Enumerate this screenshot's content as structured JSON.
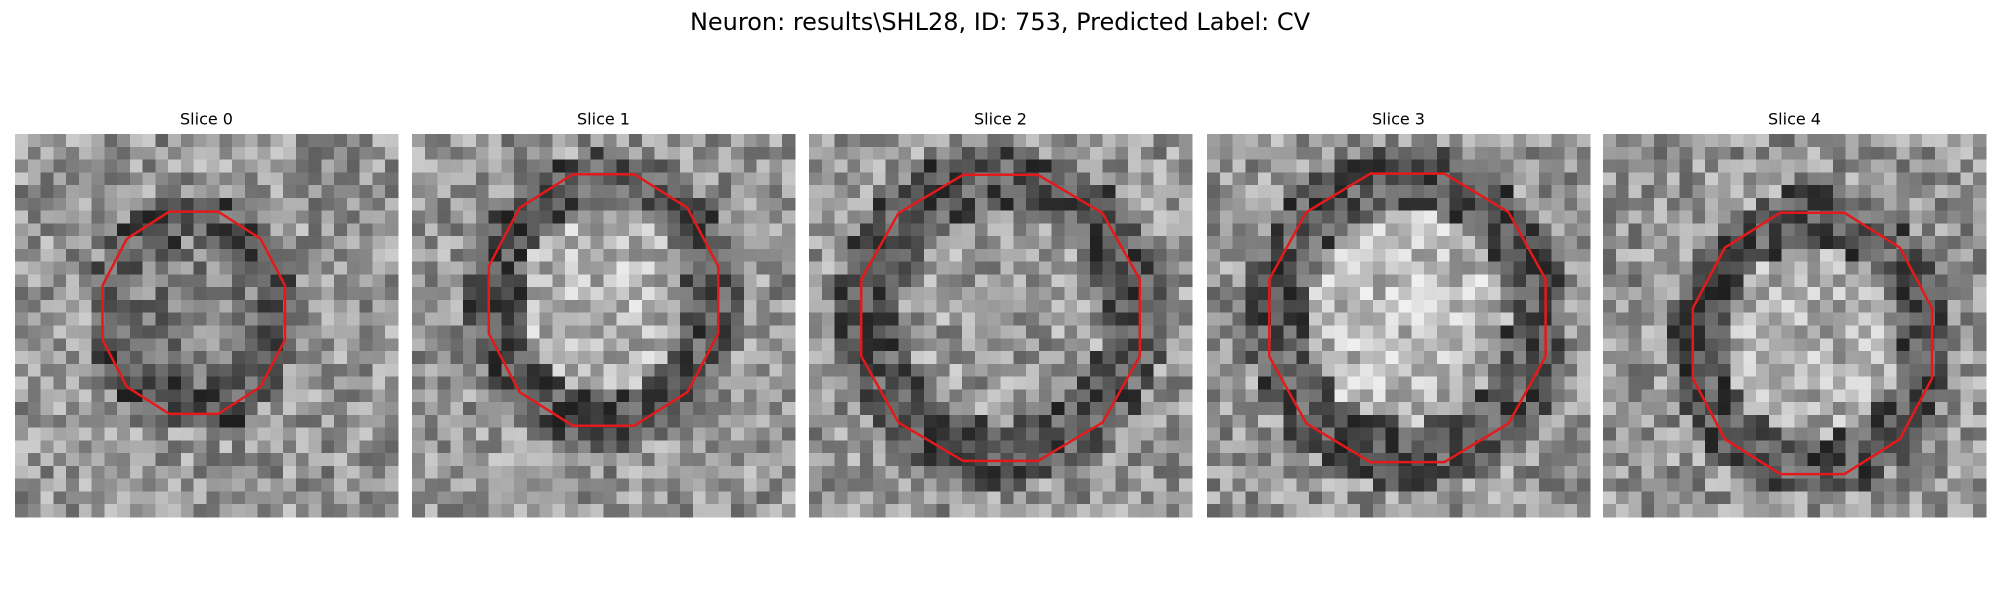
{
  "title": "Neuron: results\\SHL28, ID: 753, Predicted Label: CV",
  "panels": [
    {
      "title": "Slice 0"
    },
    {
      "title": "Slice 1"
    },
    {
      "title": "Slice 2"
    },
    {
      "title": "Slice 3"
    },
    {
      "title": "Slice 4"
    }
  ]
}
